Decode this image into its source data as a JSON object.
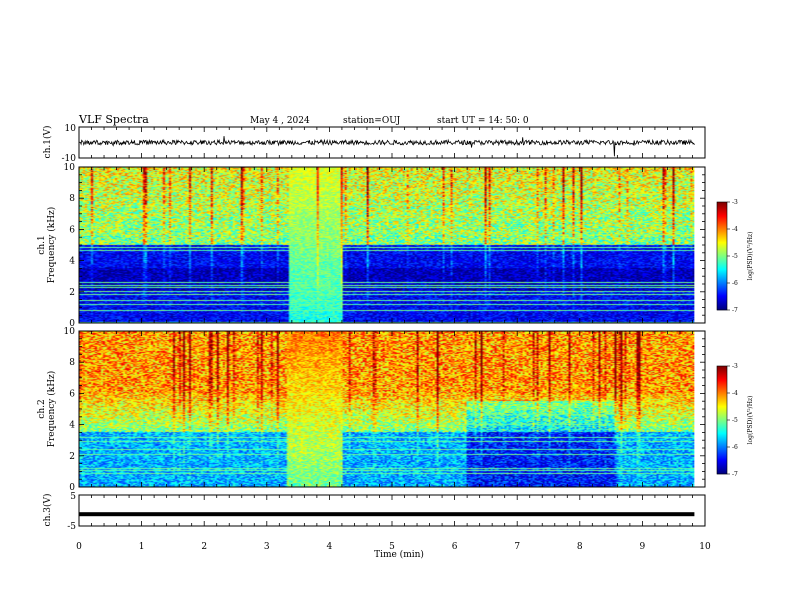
{
  "header": {
    "title": "VLF Spectra",
    "date": "May 4 , 2024",
    "station": "station=OUJ",
    "start": "start UT = 14: 50: 0"
  },
  "chart_data": [
    {
      "type": "line",
      "panel": "ch1-waveform",
      "ylabel": "ch.1(V)",
      "ylim": [
        -10,
        10
      ],
      "yticks": [
        "10",
        "-10"
      ],
      "xlim": [
        0,
        10
      ],
      "series": [
        {
          "baseline": 0,
          "noise_amplitude": 1.5,
          "spikes_at_min": [
            8.55
          ]
        }
      ]
    },
    {
      "type": "heatmap",
      "panel": "ch1-spectrogram",
      "ylabel": "ch.1\nFrequency (kHz)",
      "ylim": [
        0,
        10
      ],
      "yticks": [
        "0",
        "2",
        "4",
        "6",
        "8",
        "10"
      ],
      "xlim": [
        0,
        10
      ],
      "data_xmax": 9.83,
      "colorbar": {
        "label": "log(PSD)(V²/Hz)",
        "range": [
          -7,
          -3
        ],
        "ticks": [
          "-3",
          "-4",
          "-5",
          "-6",
          "-7"
        ]
      },
      "features": {
        "quiet_band_top_khz": 5,
        "enhanced_interval_min": [
          3.35,
          4.22
        ]
      }
    },
    {
      "type": "heatmap",
      "panel": "ch2-spectrogram",
      "ylabel": "ch.2\nFrequency (kHz)",
      "ylim": [
        0,
        10
      ],
      "yticks": [
        "0",
        "2",
        "4",
        "6",
        "8",
        "10"
      ],
      "xlim": [
        0,
        10
      ],
      "data_xmax": 9.83,
      "colorbar": {
        "label": "log(PSD)(V²/Hz)",
        "range": [
          -7,
          -3
        ],
        "ticks": [
          "-3",
          "-4",
          "-5",
          "-6",
          "-7"
        ]
      },
      "features": {
        "quiet_band_top_khz": 3.5,
        "enhanced_interval_min": [
          3.3,
          4.22
        ],
        "dark_interval_min": [
          6.2,
          8.6
        ]
      }
    },
    {
      "type": "line",
      "panel": "ch3-waveform",
      "ylabel": "ch.3(V)",
      "ylim": [
        -5,
        5
      ],
      "yticks": [
        "5",
        "-5"
      ],
      "xlim": [
        0,
        10
      ],
      "series": [
        {
          "baseline": -1.2
        }
      ]
    }
  ],
  "xaxis": {
    "label": "Time (min)",
    "ticks": [
      "0",
      "1",
      "2",
      "3",
      "4",
      "5",
      "6",
      "7",
      "8",
      "9",
      "10"
    ]
  }
}
